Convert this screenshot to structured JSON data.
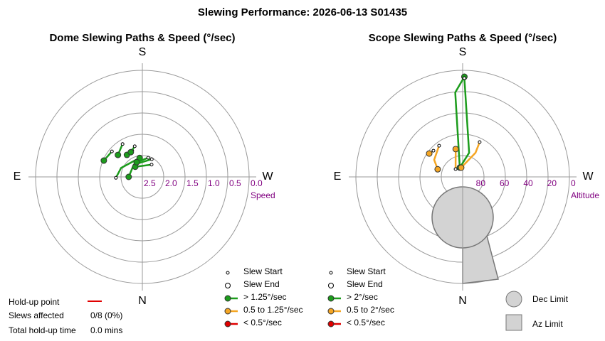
{
  "title": "Slewing Performance: 2026-06-13 S01435",
  "chart_data": [
    {
      "type": "polar",
      "title": "Dome Slewing Paths & Speed (°/sec)",
      "directions": [
        "S",
        "W",
        "N",
        "E"
      ],
      "r_label": "Speed",
      "rlim": [
        2.5,
        0.0
      ],
      "rticks": [
        {
          "value": 2.5,
          "label": "2.5"
        },
        {
          "value": 2.0,
          "label": "2.0"
        },
        {
          "value": 1.5,
          "label": "1.5"
        },
        {
          "value": 1.0,
          "label": "1.0"
        },
        {
          "value": 0.5,
          "label": "0.5"
        },
        {
          "value": 0.0,
          "label": "0.0"
        }
      ],
      "paths": [
        {
          "color": "#1c9c1c",
          "az": [
            130,
            113
          ],
          "r": [
            1.57,
            1.52
          ]
        },
        {
          "color": "#1c9c1c",
          "az": [
            149,
            132
          ],
          "r": [
            1.6,
            1.73
          ]
        },
        {
          "color": "#1c9c1c",
          "az": [
            159,
            145
          ],
          "r": [
            1.84,
            1.87
          ]
        },
        {
          "color": "#1c9c1c",
          "az": [
            166,
            155
          ],
          "r": [
            1.76,
            1.86
          ]
        },
        {
          "color": "#1c9c1c",
          "az": [
            88,
            113,
            172
          ],
          "r": [
            1.88,
            1.96,
            2.05
          ]
        },
        {
          "color": "#1c9c1c",
          "az": [
            208,
            145,
            90
          ],
          "r": [
            2.03,
            2.15,
            2.18
          ]
        },
        {
          "color": "#1c9c1c",
          "az": [
            217,
            145
          ],
          "r": [
            2.14,
            2.21
          ]
        },
        {
          "color": "#1c9c1c",
          "az": [
            197,
            159
          ],
          "r": [
            2.03,
            2.13
          ]
        }
      ],
      "legend": {
        "start": "Slew Start",
        "end": "Slew End",
        "speeds": [
          {
            "label": "> 1.25°/sec",
            "color": "#1c9c1c"
          },
          {
            "label": "0.5 to 1.25°/sec",
            "color": "#f5a623"
          },
          {
            "label": "< 0.5°/sec",
            "color": "#e00000"
          }
        ]
      }
    },
    {
      "type": "polar",
      "title": "Scope Slewing Paths & Speed (°/sec)",
      "directions": [
        "S",
        "W",
        "N",
        "E"
      ],
      "r_label": "Altitude",
      "rlim": [
        90,
        0
      ],
      "rticks": [
        80,
        60,
        40,
        20,
        0
      ],
      "paths": [
        {
          "color": "#1c9c1c",
          "az": [
            163,
            175,
            181
          ],
          "r": [
            81.8,
            18.4,
            5.4
          ]
        },
        {
          "color": "#1c9c1c",
          "az": [
            181,
            195,
            163
          ],
          "r": [
            6.6,
            68.9,
            81.8
          ]
        },
        {
          "color": "#f5a623",
          "az": [
            132,
            125
          ],
          "r": [
            56.9,
            55.6
          ]
        },
        {
          "color": "#f5a623",
          "az": [
            143,
            121,
            107
          ],
          "r": [
            57,
            62,
            68
          ]
        },
        {
          "color": "#f5a623",
          "az": [
            138,
            166
          ],
          "r": [
            81.1,
            65.8
          ]
        },
        {
          "color": "#f5a623",
          "az": [
            206,
            208,
            171
          ],
          "r": [
            57.3,
            66.9,
            82.1
          ]
        }
      ],
      "legend": {
        "start": "Slew Start",
        "end": "Slew End",
        "speeds": [
          {
            "label": "> 2°/sec",
            "color": "#1c9c1c"
          },
          {
            "label": "0.5 to 2°/sec",
            "color": "#f5a623"
          },
          {
            "label": "< 0.5°/sec",
            "color": "#e00000"
          }
        ]
      },
      "limits": [
        "Dec Limit",
        "Az Limit"
      ]
    }
  ],
  "summary": {
    "holdup_label": "Hold-up point",
    "slews_label": "Slews affected",
    "slews_value": "0/8 (0%)",
    "time_label": "Total hold-up time",
    "time_value": "0.0 mins"
  }
}
